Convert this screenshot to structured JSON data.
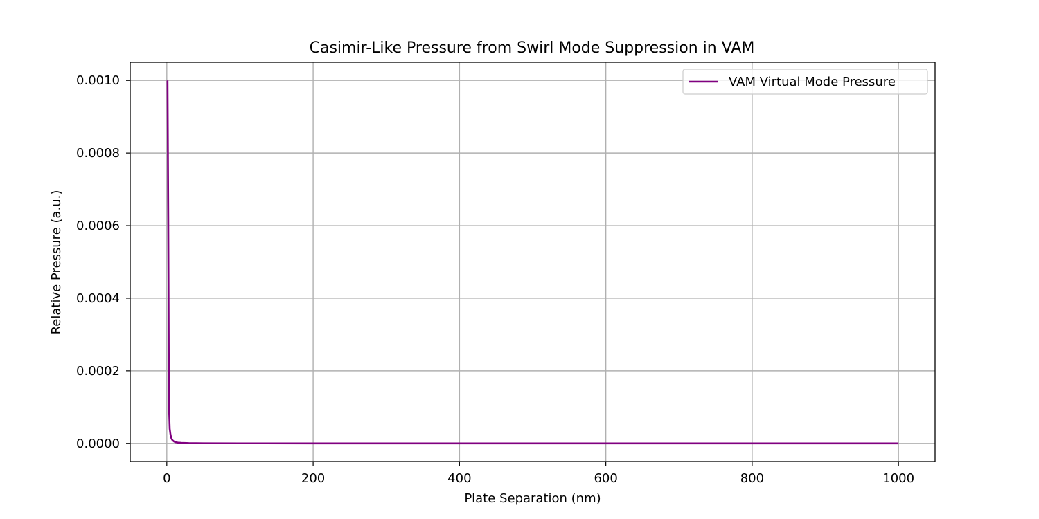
{
  "chart_data": {
    "type": "line",
    "title": "Casimir-Like Pressure from Swirl Mode Suppression in VAM",
    "xlabel": "Plate Separation (nm)",
    "ylabel": "Relative Pressure (a.u.)",
    "xlim": [
      -50,
      1050
    ],
    "ylim": [
      -5e-05,
      0.00105
    ],
    "xticks": [
      0,
      200,
      400,
      600,
      800,
      1000
    ],
    "xtick_labels": [
      "0",
      "200",
      "400",
      "600",
      "800",
      "1000"
    ],
    "yticks": [
      0,
      0.0002,
      0.0004,
      0.0006,
      0.0008,
      0.001
    ],
    "ytick_labels": [
      "0.0000",
      "0.0002",
      "0.0004",
      "0.0006",
      "0.0008",
      "0.0010"
    ],
    "grid": true,
    "legend_position": "top-right",
    "series": [
      {
        "name": "VAM Virtual Mode Pressure",
        "color": "#800080",
        "x": [
          1,
          2,
          3,
          4,
          5,
          6,
          7,
          8,
          10,
          12,
          15,
          20,
          30,
          50,
          100,
          200,
          400,
          600,
          800,
          1000
        ],
        "y": [
          0.001,
          0.000625,
          0.0001,
          4e-05,
          2.5e-05,
          1.6e-05,
          1.11e-05,
          8.2e-06,
          5e-06,
          3.3e-06,
          2.1e-06,
          1.3e-06,
          6e-07,
          2e-07,
          5e-08,
          1e-08,
          0,
          0,
          0,
          0
        ]
      }
    ]
  }
}
